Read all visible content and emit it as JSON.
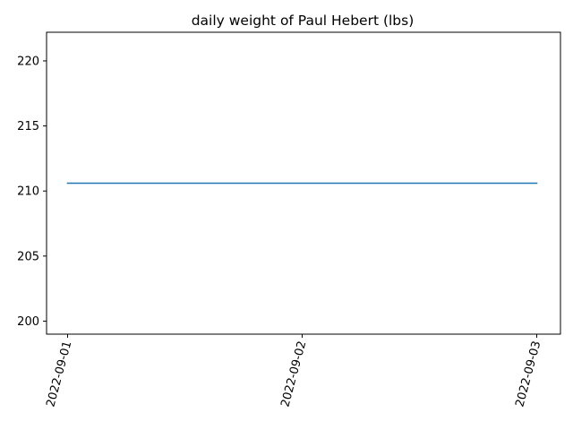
{
  "chart_data": {
    "type": "line",
    "title": "daily weight of Paul Hebert (lbs)",
    "xlabel": "",
    "ylabel": "",
    "x": [
      "2022-09-01",
      "2022-09-02",
      "2022-09-03"
    ],
    "series": [
      {
        "values": [
          210.6,
          210.6,
          210.6
        ],
        "color": "#1f77b4"
      }
    ],
    "ylim": [
      199,
      222.2
    ],
    "yticks": [
      200,
      205,
      210,
      215,
      220
    ],
    "xtick_rotation": 75,
    "grid": false,
    "legend": "none"
  }
}
